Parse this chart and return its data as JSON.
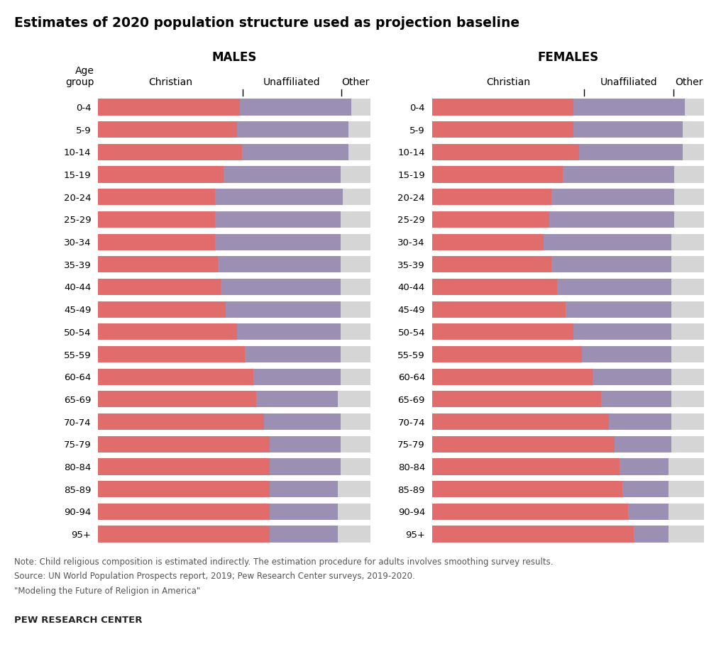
{
  "title": "Estimates of 2020 population structure used as projection baseline",
  "age_groups": [
    "0-4",
    "5-9",
    "10-14",
    "15-19",
    "20-24",
    "25-29",
    "30-34",
    "35-39",
    "40-44",
    "45-49",
    "50-54",
    "55-59",
    "60-64",
    "65-69",
    "70-74",
    "75-79",
    "80-84",
    "85-89",
    "90-94",
    "95+"
  ],
  "males_christian": [
    52,
    51,
    53,
    46,
    43,
    43,
    43,
    44,
    45,
    47,
    51,
    54,
    57,
    58,
    61,
    63,
    63,
    63,
    63,
    63
  ],
  "males_unaffiliated": [
    41,
    41,
    39,
    43,
    47,
    46,
    46,
    45,
    44,
    42,
    38,
    35,
    32,
    30,
    28,
    26,
    26,
    25,
    25,
    25
  ],
  "males_other": [
    7,
    8,
    8,
    11,
    10,
    11,
    11,
    11,
    11,
    11,
    11,
    11,
    11,
    12,
    11,
    11,
    11,
    12,
    12,
    12
  ],
  "females_christian": [
    52,
    52,
    54,
    48,
    44,
    43,
    41,
    44,
    46,
    49,
    52,
    55,
    59,
    62,
    65,
    67,
    69,
    70,
    72,
    74
  ],
  "females_unaffiliated": [
    41,
    40,
    38,
    41,
    45,
    46,
    47,
    44,
    42,
    39,
    36,
    33,
    29,
    26,
    23,
    21,
    18,
    17,
    15,
    13
  ],
  "females_other": [
    7,
    8,
    8,
    11,
    11,
    11,
    12,
    12,
    12,
    12,
    12,
    12,
    12,
    12,
    12,
    12,
    13,
    13,
    13,
    13
  ],
  "christian_color": "#e06c6c",
  "unaffiliated_color": "#9b90b3",
  "other_color": "#d5d5d5",
  "background_color": "#ffffff",
  "note_line1": "Note: Child religious composition is estimated indirectly. The estimation procedure for adults involves smoothing survey results.",
  "note_line2": "Source: UN World Population Prospects report, 2019; Pew Research Center surveys, 2019-2020.",
  "note_line3": "\"Modeling the Future of Religion in America\"",
  "footer": "PEW RESEARCH CENTER"
}
